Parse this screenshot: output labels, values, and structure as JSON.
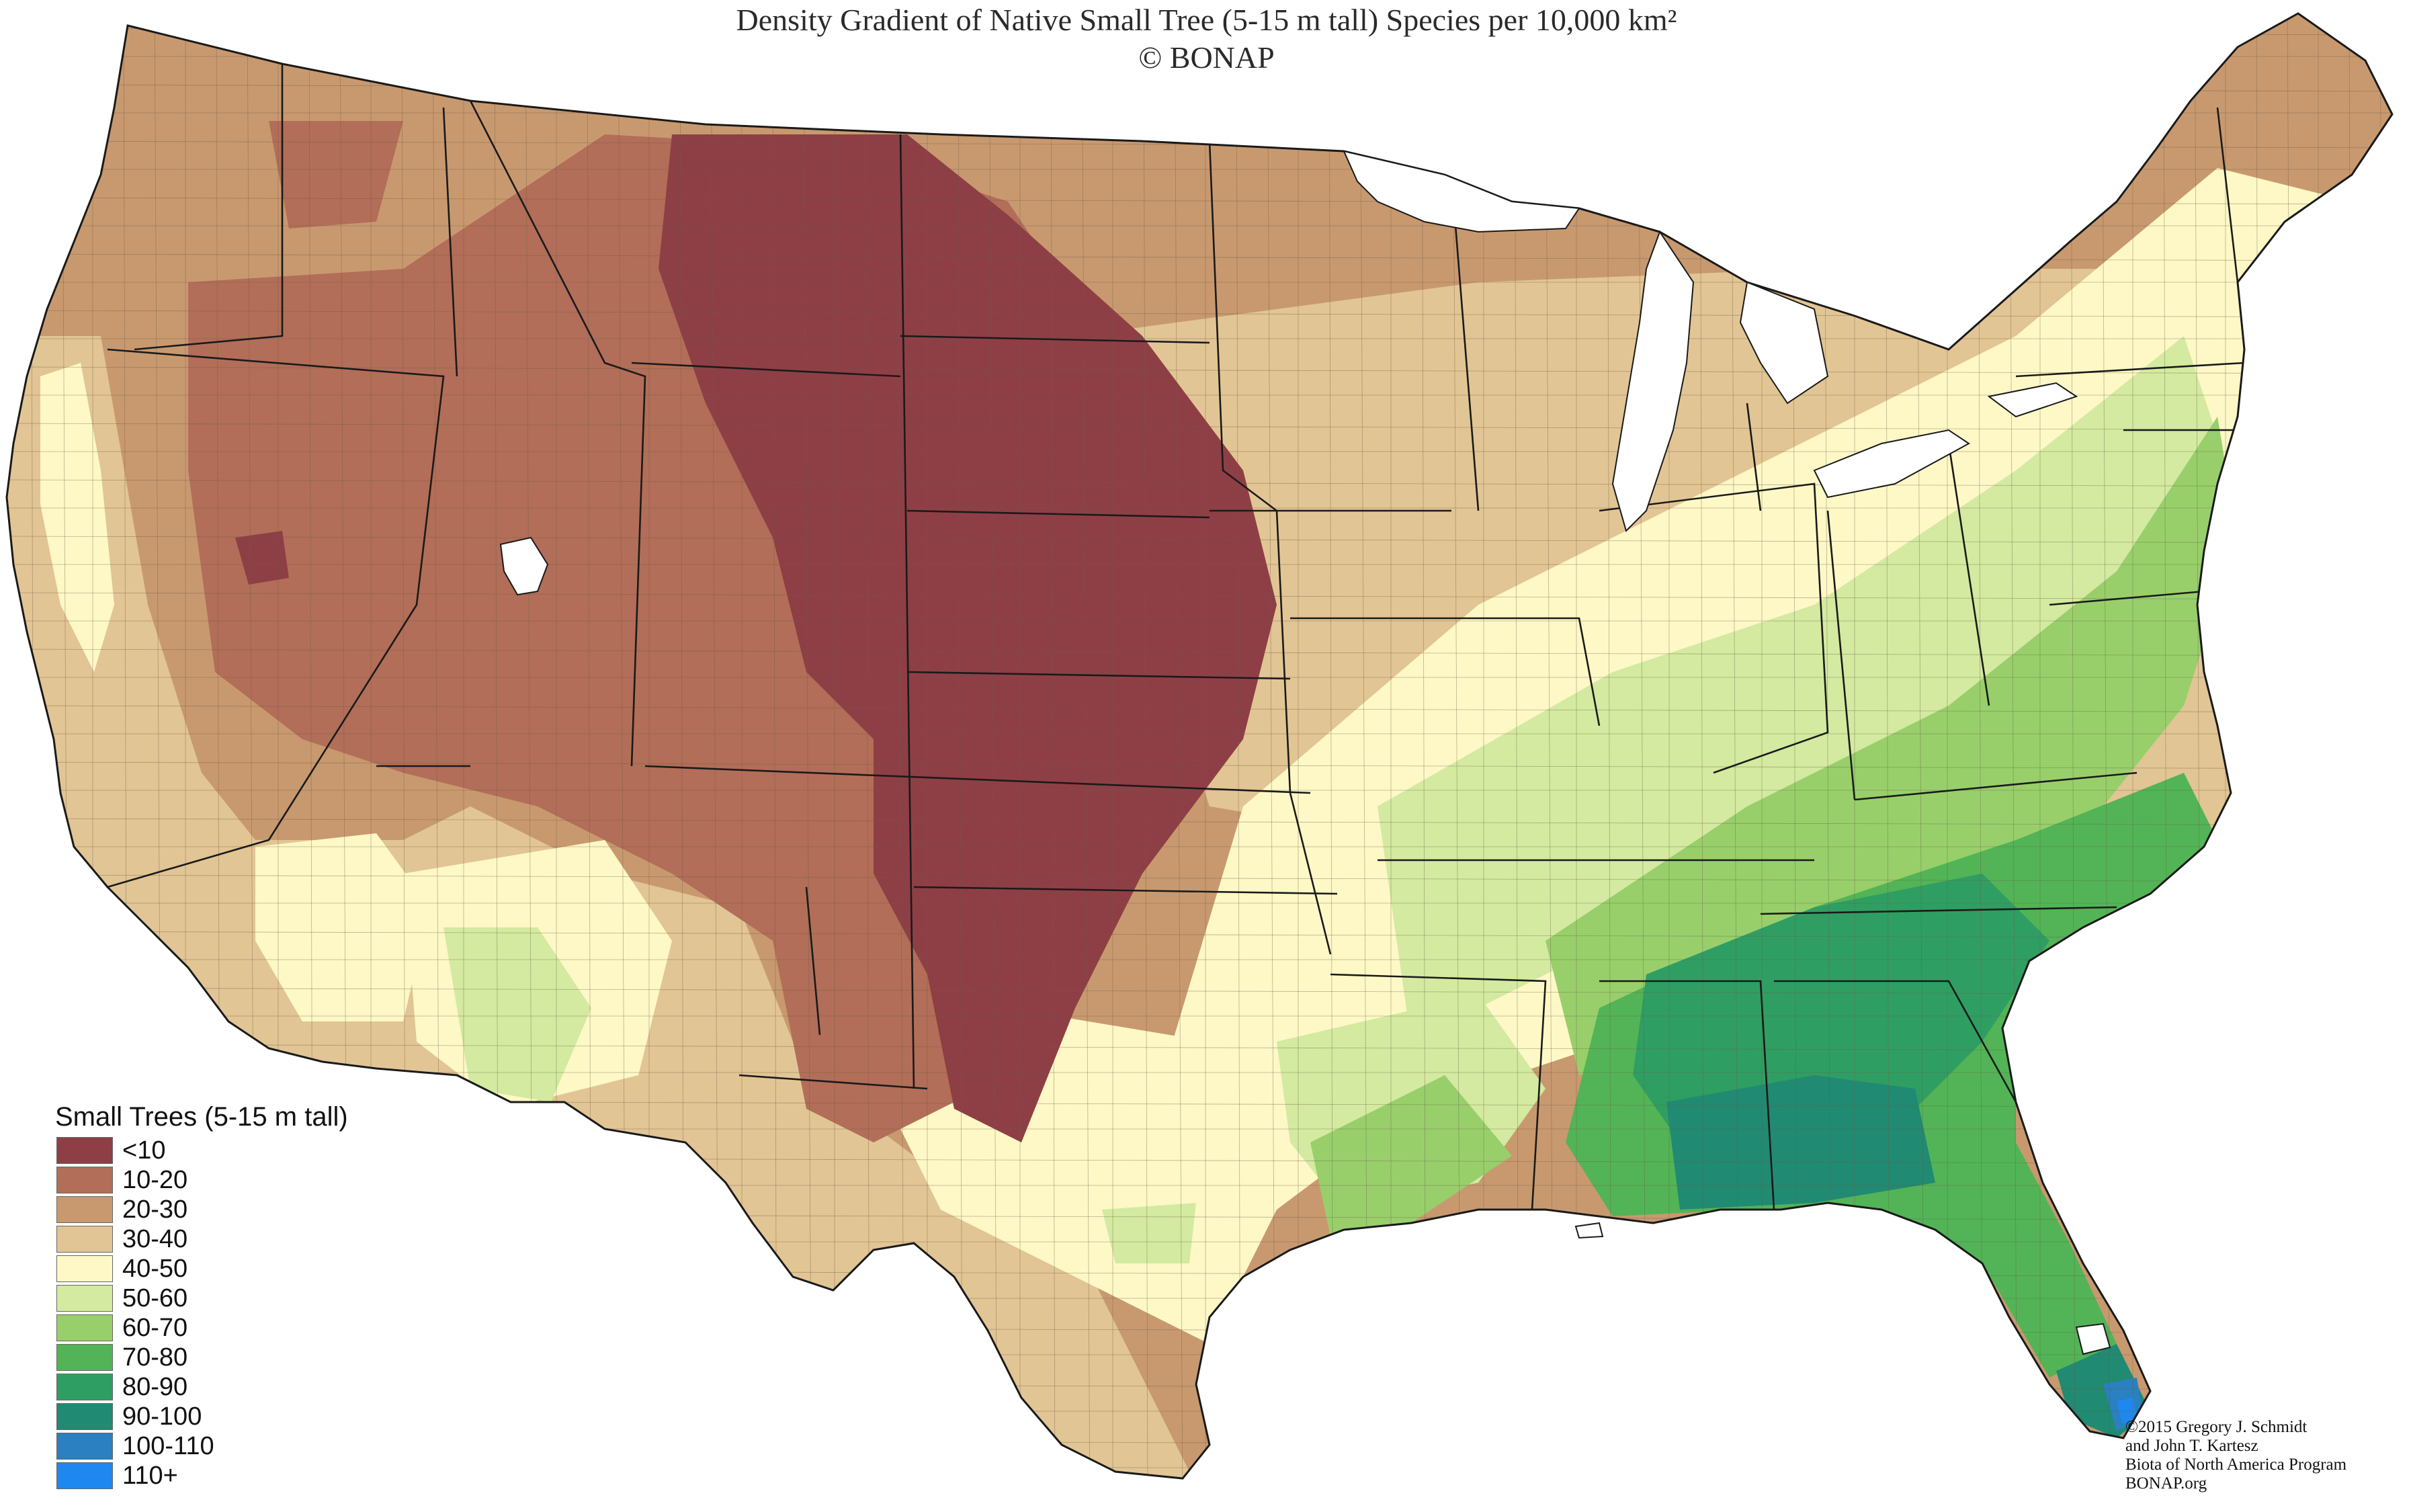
{
  "title": "Density Gradient of Native Small Tree (5-15 m tall) Species per 10,000 km²",
  "subtitle": "© BONAP",
  "legend": {
    "title": "Small Trees (5-15 m tall)",
    "items": [
      {
        "label": "<10",
        "color": "#8e3f45"
      },
      {
        "label": "10-20",
        "color": "#b26e58"
      },
      {
        "label": "20-30",
        "color": "#c8996f"
      },
      {
        "label": "30-40",
        "color": "#e2c594"
      },
      {
        "label": "40-50",
        "color": "#fdf8c6"
      },
      {
        "label": "50-60",
        "color": "#d3eaa0"
      },
      {
        "label": "60-70",
        "color": "#98cf6b"
      },
      {
        "label": "70-80",
        "color": "#52b456"
      },
      {
        "label": "80-90",
        "color": "#2f9e62"
      },
      {
        "label": "90-100",
        "color": "#218a72"
      },
      {
        "label": "100-110",
        "color": "#2a80c0"
      },
      {
        "label": "110+",
        "color": "#1e88f0"
      }
    ]
  },
  "credits": [
    "©2015 Gregory J. Schmidt",
    "and John T. Kartesz",
    "Biota of North America Program",
    "BONAP.org"
  ],
  "colors": {
    "water": "#ffffff",
    "border": "#1a1a1a",
    "county_line": "#6a5a48"
  }
}
